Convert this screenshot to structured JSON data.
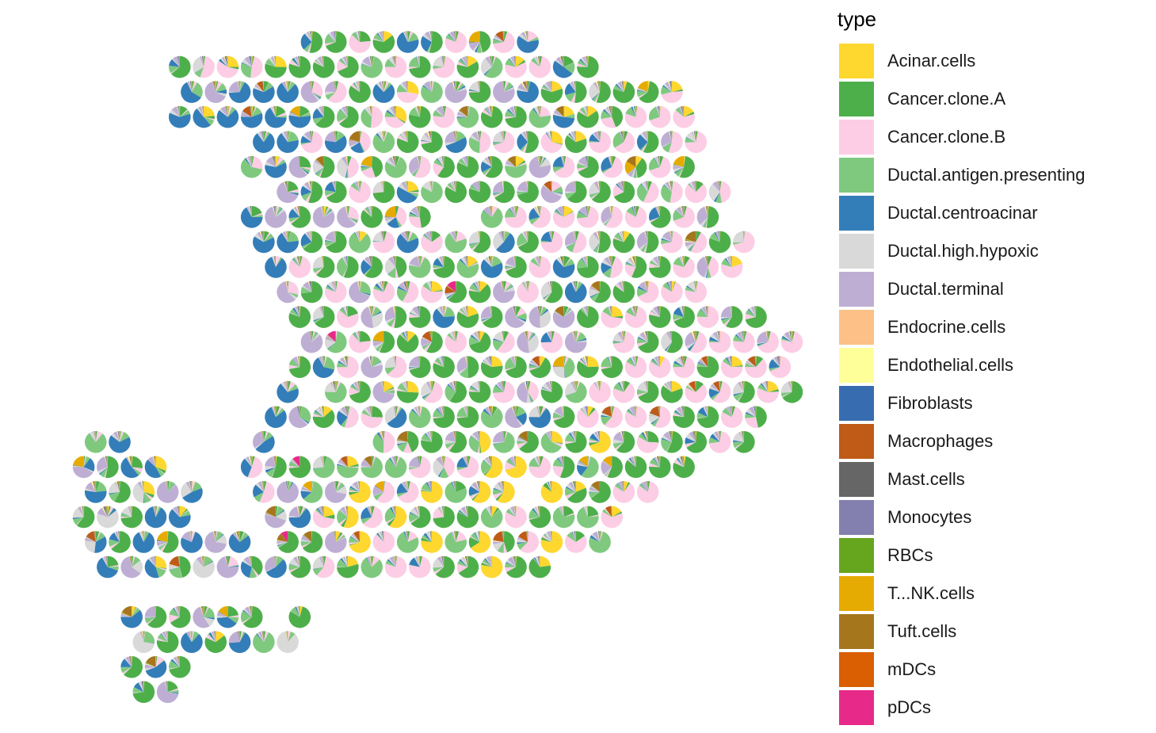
{
  "chart_data": {
    "type": "scatter",
    "subtype": "spatial-scatterpie",
    "title": "",
    "xlabel": "",
    "ylabel": "",
    "axes_visible": false,
    "grid": false,
    "legend_title": "type",
    "legend_position": "right",
    "categories": [
      {
        "name": "Acinar.cells",
        "color": "#FED72F"
      },
      {
        "name": "Cancer.clone.A",
        "color": "#4DAF4A"
      },
      {
        "name": "Cancer.clone.B",
        "color": "#FCCDE5"
      },
      {
        "name": "Ductal.antigen.presenting",
        "color": "#7FC97F"
      },
      {
        "name": "Ductal.centroacinar",
        "color": "#337EB8"
      },
      {
        "name": "Ductal.high.hypoxic",
        "color": "#D9D9D9"
      },
      {
        "name": "Ductal.terminal",
        "color": "#BEAED4"
      },
      {
        "name": "Endocrine.cells",
        "color": "#FDC086"
      },
      {
        "name": "Endothelial.cells",
        "color": "#FFFF99"
      },
      {
        "name": "Fibroblasts",
        "color": "#386CB0"
      },
      {
        "name": "Macrophages",
        "color": "#BF5B17"
      },
      {
        "name": "Mast.cells",
        "color": "#666666"
      },
      {
        "name": "Monocytes",
        "color": "#8380B0"
      },
      {
        "name": "RBCs",
        "color": "#66A61E"
      },
      {
        "name": "T...NK.cells",
        "color": "#E6AB02"
      },
      {
        "name": "Tuft.cells",
        "color": "#A6761D"
      },
      {
        "name": "mDCs",
        "color": "#D95F02"
      },
      {
        "name": "pDCs",
        "color": "#E7298A"
      }
    ],
    "grid_rows": [
      {
        "row": 0,
        "cols": [
          12,
          13,
          14,
          15,
          16,
          17,
          18,
          19,
          20,
          21
        ]
      },
      {
        "row": 1,
        "cols": [
          7,
          8,
          9,
          10,
          11,
          12,
          13,
          14,
          15,
          16,
          17,
          18,
          19,
          20,
          21,
          22,
          23,
          24
        ]
      },
      {
        "row": 2,
        "cols": [
          7,
          8,
          9,
          10,
          11,
          12,
          13,
          14,
          15,
          16,
          17,
          18,
          19,
          20,
          21,
          22,
          23,
          24,
          25,
          26,
          27
        ]
      },
      {
        "row": 3,
        "cols": [
          7,
          8,
          9,
          10,
          11,
          12,
          13,
          14,
          15,
          16,
          17,
          18,
          19,
          20,
          21,
          22,
          23,
          24,
          25,
          26,
          27,
          28
        ]
      },
      {
        "row": 4,
        "cols": [
          10,
          11,
          12,
          13,
          14,
          15,
          16,
          17,
          18,
          19,
          20,
          21,
          22,
          23,
          24,
          25,
          26,
          27,
          28
        ]
      },
      {
        "row": 5,
        "cols": [
          10,
          11,
          12,
          13,
          14,
          15,
          16,
          17,
          18,
          19,
          20,
          21,
          22,
          23,
          24,
          25,
          26,
          27,
          28
        ]
      },
      {
        "row": 6,
        "cols": [
          11,
          12,
          13,
          14,
          15,
          16,
          17,
          18,
          19,
          20,
          21,
          22,
          23,
          24,
          25,
          26,
          27,
          28,
          29
        ]
      },
      {
        "row": 7,
        "cols": [
          10,
          11,
          12,
          13,
          14,
          15,
          16,
          17,
          20,
          21,
          22,
          23,
          24,
          25,
          26,
          27,
          28,
          29
        ]
      },
      {
        "row": 8,
        "cols": [
          10,
          11,
          12,
          13,
          14,
          15,
          16,
          17,
          18,
          19,
          20,
          21,
          22,
          23,
          24,
          25,
          26,
          27,
          28,
          29,
          30
        ]
      },
      {
        "row": 9,
        "cols": [
          11,
          12,
          13,
          14,
          15,
          16,
          17,
          18,
          19,
          20,
          21,
          22,
          23,
          24,
          25,
          26,
          27,
          28,
          29,
          30
        ]
      },
      {
        "row": 10,
        "cols": [
          11,
          12,
          13,
          14,
          15,
          16,
          17,
          18,
          19,
          20,
          21,
          22,
          23,
          24,
          25,
          26,
          27,
          28
        ]
      },
      {
        "row": 11,
        "cols": [
          12,
          13,
          14,
          15,
          16,
          17,
          18,
          19,
          20,
          21,
          22,
          23,
          24,
          25,
          26,
          27,
          28,
          29,
          30,
          31
        ]
      },
      {
        "row": 12,
        "cols": [
          12,
          13,
          14,
          15,
          16,
          17,
          18,
          19,
          20,
          21,
          22,
          23,
          25,
          26,
          27,
          28,
          29,
          30,
          31,
          32
        ]
      },
      {
        "row": 13,
        "cols": [
          12,
          13,
          14,
          15,
          16,
          17,
          18,
          19,
          20,
          21,
          22,
          23,
          24,
          25,
          26,
          27,
          28,
          29,
          30,
          31,
          32
        ]
      },
      {
        "row": 14,
        "cols": [
          11,
          13,
          14,
          15,
          16,
          17,
          18,
          19,
          20,
          21,
          22,
          23,
          24,
          25,
          26,
          27,
          28,
          29,
          30,
          31,
          32
        ]
      },
      {
        "row": 15,
        "cols": [
          11,
          12,
          13,
          14,
          15,
          16,
          17,
          18,
          19,
          20,
          21,
          22,
          23,
          24,
          25,
          26,
          27,
          28,
          29,
          30,
          31
        ]
      },
      {
        "row": 16,
        "cols": [
          3,
          4,
          10,
          15,
          16,
          17,
          18,
          19,
          20,
          21,
          22,
          23,
          24,
          25,
          26,
          27,
          28,
          29,
          30
        ]
      },
      {
        "row": 17,
        "cols": [
          3,
          4,
          5,
          6,
          10,
          11,
          12,
          13,
          14,
          15,
          16,
          17,
          18,
          19,
          20,
          21,
          22,
          23,
          24,
          25,
          26,
          27,
          28
        ]
      },
      {
        "row": 18,
        "cols": [
          3,
          4,
          5,
          6,
          7,
          10,
          11,
          12,
          13,
          14,
          15,
          16,
          17,
          18,
          19,
          20,
          22,
          23,
          24,
          25,
          26
        ]
      },
      {
        "row": 19,
        "cols": [
          3,
          4,
          5,
          6,
          7,
          11,
          12,
          13,
          14,
          15,
          16,
          17,
          18,
          19,
          20,
          21,
          22,
          23,
          24,
          25
        ]
      },
      {
        "row": 20,
        "cols": [
          3,
          4,
          5,
          6,
          7,
          8,
          9,
          11,
          12,
          13,
          14,
          15,
          16,
          17,
          18,
          19,
          20,
          21,
          22,
          23,
          24
        ]
      },
      {
        "row": 21,
        "cols": [
          4,
          5,
          6,
          7,
          8,
          9,
          10,
          11,
          12,
          13,
          14,
          15,
          16,
          17,
          18,
          19,
          20,
          21,
          22
        ]
      },
      {
        "row": 23,
        "cols": [
          5,
          6,
          7,
          8,
          9,
          10,
          12
        ]
      },
      {
        "row": 24,
        "cols": [
          5,
          6,
          7,
          8,
          9,
          10,
          11
        ]
      },
      {
        "row": 25,
        "cols": [
          5,
          6,
          7
        ]
      },
      {
        "row": 26,
        "cols": [
          5,
          6
        ]
      }
    ]
  }
}
